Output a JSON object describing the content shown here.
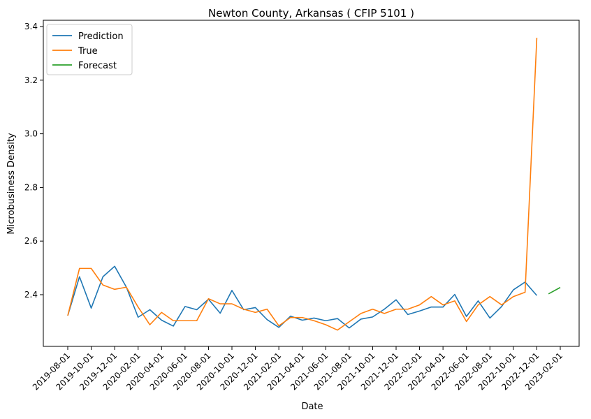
{
  "chart_data": {
    "type": "line",
    "title": "Newton County, Arkansas ( CFIP 5101 )",
    "xlabel": "Date",
    "ylabel": "Microbusiness Density",
    "x_tick_labels": [
      "2019-08-01",
      "2019-10-01",
      "2019-12-01",
      "2020-02-01",
      "2020-04-01",
      "2020-06-01",
      "2020-08-01",
      "2020-10-01",
      "2020-12-01",
      "2021-02-01",
      "2021-04-01",
      "2021-06-01",
      "2021-08-01",
      "2021-10-01",
      "2021-12-01",
      "2022-02-01",
      "2022-04-01",
      "2022-06-01",
      "2022-08-01",
      "2022-10-01",
      "2022-12-01",
      "2023-02-01"
    ],
    "x_range": [
      "2019-08-01",
      "2023-02-01"
    ],
    "y_ticks": [
      2.4,
      2.6,
      2.8,
      3.0,
      3.2,
      3.4
    ],
    "y_tick_labels": [
      "2.4",
      "2.6",
      "2.8",
      "3.0",
      "3.2",
      "3.4"
    ],
    "ylim": [
      2.225,
      3.41
    ],
    "grid": false,
    "legend_position": "top-left",
    "series": [
      {
        "name": "Prediction",
        "color": "#1f77b4",
        "x": [
          "2019-08-01",
          "2019-09-01",
          "2019-10-01",
          "2019-11-01",
          "2019-12-01",
          "2020-01-01",
          "2020-02-01",
          "2020-03-01",
          "2020-04-01",
          "2020-05-01",
          "2020-06-01",
          "2020-07-01",
          "2020-08-01",
          "2020-09-01",
          "2020-10-01",
          "2020-11-01",
          "2020-12-01",
          "2021-01-01",
          "2021-02-01",
          "2021-03-01",
          "2021-04-01",
          "2021-05-01",
          "2021-06-01",
          "2021-07-01",
          "2021-08-01",
          "2021-09-01",
          "2021-10-01",
          "2021-11-01",
          "2021-12-01",
          "2022-01-01",
          "2022-02-01",
          "2022-03-01",
          "2022-04-01",
          "2022-05-01",
          "2022-06-01",
          "2022-07-01",
          "2022-08-01",
          "2022-09-01",
          "2022-10-01",
          "2022-11-01",
          "2022-12-01"
        ],
        "y": [
          2.322,
          2.467,
          2.35,
          2.467,
          2.506,
          2.428,
          2.316,
          2.344,
          2.305,
          2.283,
          2.356,
          2.344,
          2.383,
          2.331,
          2.416,
          2.344,
          2.352,
          2.307,
          2.278,
          2.32,
          2.305,
          2.313,
          2.303,
          2.311,
          2.276,
          2.309,
          2.317,
          2.346,
          2.381,
          2.326,
          2.339,
          2.354,
          2.354,
          2.401,
          2.319,
          2.377,
          2.313,
          2.356,
          2.418,
          2.447,
          2.397
        ]
      },
      {
        "name": "True",
        "color": "#ff7f0e",
        "x": [
          "2019-08-01",
          "2019-09-01",
          "2019-10-01",
          "2019-11-01",
          "2019-12-01",
          "2020-01-01",
          "2020-02-01",
          "2020-03-01",
          "2020-04-01",
          "2020-05-01",
          "2020-06-01",
          "2020-07-01",
          "2020-08-01",
          "2020-09-01",
          "2020-10-01",
          "2020-11-01",
          "2020-12-01",
          "2021-01-01",
          "2021-02-01",
          "2021-03-01",
          "2021-04-01",
          "2021-05-01",
          "2021-06-01",
          "2021-07-01",
          "2021-08-01",
          "2021-09-01",
          "2021-10-01",
          "2021-11-01",
          "2021-12-01",
          "2022-01-01",
          "2022-02-01",
          "2022-03-01",
          "2022-04-01",
          "2022-05-01",
          "2022-06-01",
          "2022-07-01",
          "2022-08-01",
          "2022-09-01",
          "2022-10-01",
          "2022-11-01",
          "2022-12-01"
        ],
        "y": [
          2.322,
          2.498,
          2.498,
          2.436,
          2.42,
          2.428,
          2.354,
          2.288,
          2.334,
          2.303,
          2.303,
          2.303,
          2.385,
          2.366,
          2.366,
          2.346,
          2.334,
          2.346,
          2.284,
          2.315,
          2.315,
          2.303,
          2.288,
          2.268,
          2.299,
          2.33,
          2.346,
          2.33,
          2.346,
          2.346,
          2.362,
          2.393,
          2.362,
          2.377,
          2.3,
          2.362,
          2.393,
          2.362,
          2.393,
          2.409,
          3.358
        ]
      },
      {
        "name": "Forecast",
        "color": "#2ca02c",
        "x": [
          "2023-01-01",
          "2023-02-01"
        ],
        "y": [
          2.403,
          2.427
        ]
      }
    ]
  }
}
